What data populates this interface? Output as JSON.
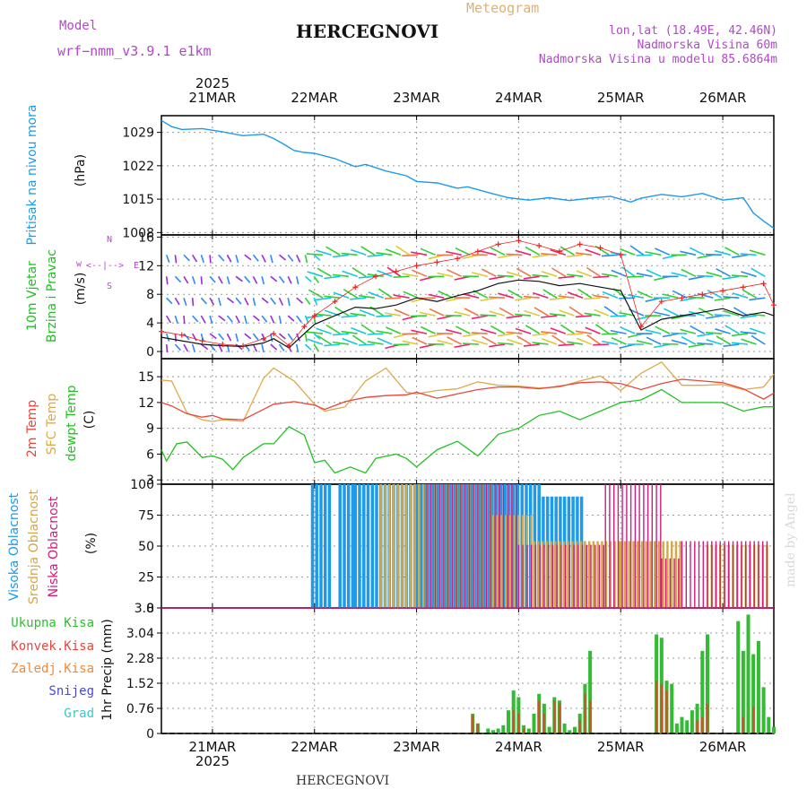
{
  "header": {
    "model_label": "Model",
    "model_name": "wrf−nmm_v3.9.1  e1km",
    "title": "HERCEGNOVI",
    "meteogram_label": "Meteogram",
    "lonlat": "lon,lat (18.49E, 42.46N)",
    "elevation": "Nadmorska Visina 60m",
    "model_elevation": "Nadmorska Visina u modelu 85.6864m",
    "footer_station": "HERCEGNOVI",
    "signature": "made by Angel"
  },
  "colors": {
    "pressure": "#1e9be8",
    "temp2m": "#e8463c",
    "sfc_temp": "#e0a84a",
    "dewpoint": "#22c022",
    "high_cloud": "#1e9be8",
    "mid_cloud": "#d4a848",
    "low_cloud": "#d21c7a",
    "total_precip": "#33bb33",
    "conv_precip": "#c05a28",
    "wind_speed": "#111111",
    "wind_gust": "#ee2222"
  },
  "chart_data": [
    {
      "type": "line",
      "panel": "pressure",
      "ylabel": "Pritisak na nivou mora",
      "unit": "(hPa)",
      "top_year": "2025",
      "x_ticks": [
        "21MAR",
        "22MAR",
        "23MAR",
        "24MAR",
        "25MAR",
        "26MAR"
      ],
      "yticks": [
        "1008",
        "1015",
        "1022",
        "1029"
      ],
      "ylim": [
        1007.5,
        1032.5
      ],
      "xlim": [
        -0.5,
        5.5
      ],
      "series": [
        {
          "x": [
            -0.5,
            -0.4,
            -0.3,
            -0.1,
            0.1,
            0.3,
            0.5,
            0.6,
            0.7,
            0.8,
            0.9,
            1.0,
            1.2,
            1.4,
            1.5,
            1.7,
            1.9,
            2.0,
            2.2,
            2.4,
            2.5,
            2.7,
            2.9,
            3.1,
            3.3,
            3.5,
            3.7,
            3.9,
            4.1,
            4.2,
            4.4,
            4.6,
            4.8,
            5.0,
            5.2,
            5.3,
            5.4,
            5.5
          ],
          "values": [
            1031.5,
            1030.2,
            1029.6,
            1029.8,
            1029.1,
            1028.3,
            1028.6,
            1027.7,
            1026.5,
            1025.2,
            1024.8,
            1024.6,
            1023.5,
            1021.8,
            1022.3,
            1020.9,
            1019.9,
            1018.7,
            1018.4,
            1017.3,
            1017.6,
            1016.4,
            1015.3,
            1014.8,
            1015.3,
            1014.7,
            1015.2,
            1015.6,
            1014.4,
            1015.2,
            1016.0,
            1015.5,
            1016.2,
            1014.8,
            1015.3,
            1012.1,
            1010.4,
            1008.9
          ]
        }
      ]
    },
    {
      "type": "line",
      "panel": "wind",
      "ylabel": [
        "10m Vjetar",
        "Brzina i Pravac"
      ],
      "unit": "(m/s)",
      "direction_labels": [
        "w",
        "<--|-->",
        "E",
        "N",
        "S"
      ],
      "yticks": [
        "0",
        "4",
        "8",
        "12",
        "16"
      ],
      "ylim": [
        -1,
        16.3
      ],
      "xlim": [
        -0.5,
        5.5
      ],
      "series": [
        {
          "x": [
            -0.5,
            -0.3,
            -0.1,
            0.1,
            0.3,
            0.5,
            0.6,
            0.75,
            0.9,
            1.0,
            1.2,
            1.4,
            1.6,
            1.8,
            2.0,
            2.2,
            2.4,
            2.6,
            2.8,
            3.0,
            3.2,
            3.4,
            3.6,
            3.8,
            4.0,
            4.2,
            4.4,
            4.6,
            4.8,
            5.0,
            5.2,
            5.4,
            5.5
          ],
          "values": [
            2.0,
            1.5,
            1.0,
            0.8,
            0.7,
            1.2,
            1.8,
            0.5,
            2.5,
            3.8,
            5.0,
            6.2,
            6.0,
            6.5,
            7.5,
            7.0,
            7.8,
            8.5,
            9.5,
            10.0,
            9.8,
            9.2,
            9.5,
            9.0,
            8.5,
            3.0,
            4.5,
            5.0,
            5.5,
            6.0,
            5.0,
            5.5,
            5.0
          ]
        },
        {
          "x": [
            -0.5,
            -0.3,
            -0.1,
            0.1,
            0.3,
            0.5,
            0.6,
            0.75,
            0.9,
            1.0,
            1.2,
            1.4,
            1.6,
            1.8,
            2.0,
            2.2,
            2.4,
            2.6,
            2.8,
            3.0,
            3.2,
            3.4,
            3.6,
            3.8,
            4.0,
            4.2,
            4.4,
            4.6,
            4.8,
            5.0,
            5.2,
            5.4,
            5.5
          ],
          "values": [
            2.8,
            2.3,
            1.5,
            1.0,
            0.8,
            1.8,
            2.5,
            0.8,
            3.5,
            5.0,
            7.0,
            9.0,
            10.5,
            11.2,
            12.0,
            12.5,
            13.0,
            14.0,
            15.0,
            15.5,
            14.8,
            14.0,
            15.0,
            14.5,
            13.5,
            3.5,
            7.0,
            7.5,
            8.0,
            8.5,
            9.0,
            9.5,
            6.5
          ]
        }
      ]
    },
    {
      "type": "line",
      "panel": "temperature",
      "ylabel": [
        "2m Temp",
        "SFC Temp",
        "dewpt Temp"
      ],
      "unit": "(C)",
      "yticks": [
        "3",
        "6",
        "9",
        "12",
        "15"
      ],
      "ylim": [
        2.5,
        17.1
      ],
      "xlim": [
        -0.5,
        5.5
      ],
      "series": [
        {
          "x": [
            -0.5,
            -0.4,
            -0.25,
            -0.1,
            0.0,
            0.1,
            0.3,
            0.5,
            0.6,
            0.8,
            1.0,
            1.1,
            1.3,
            1.5,
            1.7,
            1.9,
            2.0,
            2.2,
            2.4,
            2.6,
            2.8,
            3.0,
            3.2,
            3.4,
            3.6,
            3.8,
            4.0,
            4.2,
            4.4,
            4.6,
            4.8,
            5.0,
            5.2,
            5.4,
            5.5
          ],
          "values": [
            12.0,
            11.6,
            10.7,
            10.3,
            10.5,
            10.1,
            10.0,
            11.2,
            11.8,
            12.1,
            11.7,
            11.2,
            12.1,
            12.6,
            12.8,
            12.9,
            13.2,
            12.5,
            13.0,
            13.5,
            13.8,
            13.8,
            13.6,
            13.9,
            14.3,
            14.4,
            14.2,
            13.5,
            14.2,
            14.7,
            14.5,
            14.3,
            13.6,
            12.4,
            13.1
          ]
        },
        {
          "x": [
            -0.5,
            -0.4,
            -0.25,
            -0.1,
            0.0,
            0.1,
            0.3,
            0.5,
            0.6,
            0.8,
            1.0,
            1.1,
            1.3,
            1.5,
            1.7,
            1.9,
            2.0,
            2.2,
            2.4,
            2.6,
            2.8,
            3.0,
            3.2,
            3.4,
            3.6,
            3.8,
            4.0,
            4.2,
            4.4,
            4.6,
            4.8,
            5.0,
            5.2,
            5.4,
            5.5
          ],
          "values": [
            14.6,
            14.5,
            10.8,
            10.0,
            9.8,
            10.0,
            9.8,
            14.8,
            16.0,
            14.5,
            11.8,
            11.0,
            11.5,
            14.5,
            16.0,
            13.2,
            13.0,
            13.4,
            13.6,
            14.4,
            14.0,
            13.9,
            13.7,
            13.8,
            14.5,
            15.1,
            13.4,
            15.4,
            16.7,
            14.0,
            14.0,
            14.1,
            13.5,
            13.8,
            15.3
          ]
        },
        {
          "x": [
            -0.5,
            -0.45,
            -0.35,
            -0.25,
            -0.1,
            0.0,
            0.1,
            0.2,
            0.3,
            0.5,
            0.6,
            0.75,
            0.9,
            1.0,
            1.1,
            1.2,
            1.35,
            1.5,
            1.6,
            1.8,
            1.9,
            2.0,
            2.2,
            2.4,
            2.6,
            2.8,
            3.0,
            3.2,
            3.4,
            3.6,
            3.8,
            4.0,
            4.2,
            4.4,
            4.6,
            4.8,
            5.0,
            5.2,
            5.4,
            5.5
          ],
          "values": [
            6.5,
            5.2,
            7.2,
            7.4,
            5.6,
            5.8,
            5.4,
            4.2,
            5.6,
            7.2,
            7.2,
            9.2,
            8.2,
            5.0,
            5.3,
            3.8,
            4.5,
            3.8,
            5.5,
            6.0,
            5.5,
            4.5,
            6.5,
            7.5,
            5.8,
            8.3,
            9.0,
            10.5,
            11.0,
            10.0,
            11.0,
            12.0,
            12.3,
            13.5,
            12.0,
            12.0,
            12.0,
            11.0,
            11.5,
            11.5
          ]
        }
      ]
    },
    {
      "type": "bar",
      "panel": "cloud",
      "ylabel": [
        "Visoka Oblacnost",
        "Srednja Oblacnost",
        "Niska Oblacnost"
      ],
      "unit": "(%)",
      "yticks": [
        "0",
        "25",
        "50",
        "75",
        "100"
      ],
      "ylim": [
        0,
        100
      ],
      "xlim": [
        -0.5,
        5.5
      ],
      "series": [
        {
          "name": "Visoka Oblacnost",
          "segments": [
            [
              0.98,
              1.15,
              100
            ],
            [
              1.25,
              1.4,
              100
            ],
            [
              1.4,
              2.0,
              100
            ],
            [
              2.0,
              2.7,
              100
            ],
            [
              2.7,
              3.2,
              100
            ],
            [
              3.2,
              3.65,
              90
            ]
          ]
        },
        {
          "name": "Srednja Oblacnost",
          "segments": [
            [
              1.65,
              2.1,
              100
            ],
            [
              2.1,
              2.75,
              100
            ],
            [
              2.75,
              3.15,
              75
            ],
            [
              3.15,
              3.65,
              100
            ],
            [
              3.65,
              4.0,
              90
            ],
            [
              4.0,
              4.6,
              100
            ],
            [
              4.85,
              5.45,
              100
            ]
          ]
        },
        {
          "name": "Niska Oblacnost",
          "segments": [
            [
              2.1,
              3.0,
              100
            ],
            [
              3.0,
              3.85,
              100
            ],
            [
              3.85,
              4.4,
              100
            ],
            [
              4.4,
              4.6,
              40
            ],
            [
              4.6,
              5.45,
              100
            ]
          ]
        }
      ]
    },
    {
      "type": "bar",
      "panel": "precip",
      "ylabel": [
        "Ukupna Kisa",
        "Konvek.Kisa",
        "Zaledj.Kisa",
        "Snijeg",
        "Grad"
      ],
      "axis_label": "1hr Precip (mm)",
      "yticks": [
        "0",
        "0.76",
        "1.52",
        "2.28",
        "3.04",
        "3.8"
      ],
      "ylim": [
        0,
        3.8
      ],
      "xlim": [
        -0.5,
        5.5
      ],
      "x_ticks": [
        "21MAR",
        "22MAR",
        "23MAR",
        "24MAR",
        "25MAR",
        "26MAR"
      ],
      "bottom_year": "2025",
      "series": [
        {
          "name": "Ukupna Kisa",
          "x": [
            2.55,
            2.6,
            2.7,
            2.75,
            2.8,
            2.85,
            2.9,
            2.95,
            3.0,
            3.05,
            3.1,
            3.15,
            3.2,
            3.25,
            3.3,
            3.35,
            3.4,
            3.45,
            3.5,
            3.55,
            3.6,
            3.65,
            3.7,
            4.35,
            4.4,
            4.45,
            4.5,
            4.55,
            4.6,
            4.65,
            4.7,
            4.75,
            4.8,
            4.85,
            5.15,
            5.2,
            5.25,
            5.3,
            5.35,
            5.4,
            5.45,
            5.5
          ],
          "values": [
            0.6,
            0.3,
            0.15,
            0.1,
            0.15,
            0.25,
            0.7,
            1.3,
            1.1,
            0.25,
            0.15,
            0.6,
            1.2,
            0.9,
            0.2,
            1.1,
            1.0,
            0.3,
            0.1,
            0.2,
            0.6,
            1.5,
            2.5,
            3.0,
            2.9,
            1.6,
            1.5,
            0.3,
            0.5,
            0.4,
            0.7,
            0.9,
            2.5,
            3.0,
            3.4,
            2.5,
            3.6,
            2.4,
            2.8,
            1.4,
            0.5,
            0.2
          ]
        },
        {
          "name": "Konvek.Kisa",
          "x": [
            2.55,
            2.6,
            2.95,
            3.0,
            3.05,
            3.2,
            3.25,
            3.35,
            3.4,
            3.6,
            3.65,
            3.7,
            4.35,
            4.4,
            4.45,
            4.75,
            4.8,
            4.85,
            5.2,
            5.3
          ],
          "values": [
            0.55,
            0.3,
            0.7,
            0.6,
            0.15,
            1.0,
            0.6,
            1.0,
            0.9,
            0.4,
            1.2,
            1.0,
            1.6,
            1.5,
            1.3,
            0.4,
            0.5,
            0.9,
            0.5,
            0.8
          ]
        }
      ]
    }
  ]
}
